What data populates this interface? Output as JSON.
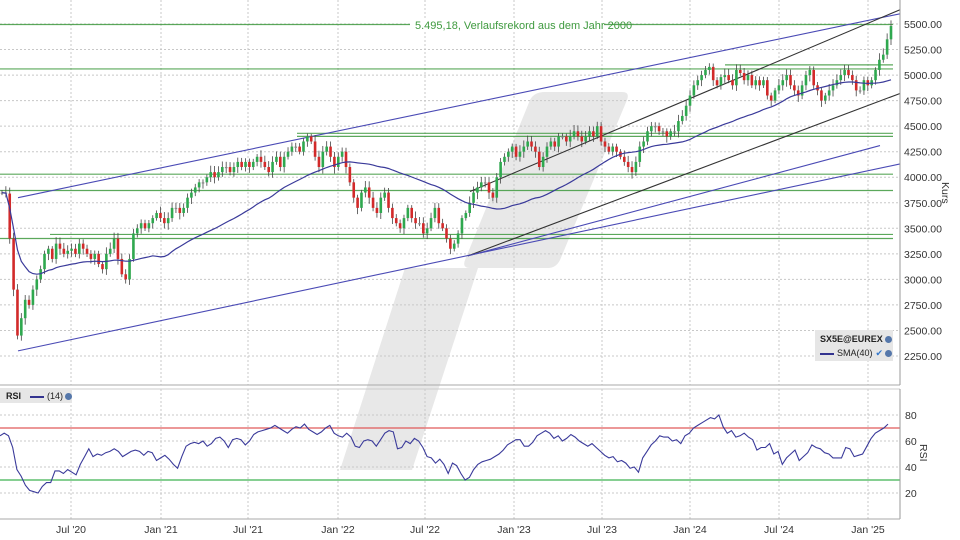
{
  "chart_data": [
    {
      "type": "candlestick",
      "title": "",
      "instrument": "SX5E@EUREX",
      "ylabel": "Kurs",
      "ylim": [
        2050,
        5650
      ],
      "yticks": [
        "5500.00",
        "5250.00",
        "5000.00",
        "4750.00",
        "4500.00",
        "4250.00",
        "4000.00",
        "3750.00",
        "3500.00",
        "3250.00",
        "3000.00",
        "2750.00",
        "2500.00",
        "2250.00"
      ],
      "xticks": [
        "Jul '20",
        "Jan '21",
        "Jul '21",
        "Jan '22",
        "Jul '22",
        "Jan '23",
        "Jul '23",
        "Jan '24",
        "Jul '24",
        "Jan '25"
      ],
      "grid": true,
      "annotation": "5.495,18, Verlaufsrekord aus dem Jahr 2000",
      "legend": [
        "SX5E@EUREX",
        "SMA(40)"
      ],
      "closes_weekly_approx": [
        3850,
        3840,
        3400,
        2900,
        2450,
        2620,
        2800,
        2750,
        2900,
        3000,
        3100,
        3250,
        3300,
        3200,
        3350,
        3300,
        3250,
        3280,
        3300,
        3250,
        3350,
        3300,
        3250,
        3200,
        3250,
        3150,
        3100,
        3250,
        3300,
        3400,
        3200,
        3050,
        3000,
        3200,
        3450,
        3500,
        3550,
        3500,
        3550,
        3600,
        3650,
        3600,
        3550,
        3600,
        3700,
        3700,
        3650,
        3700,
        3800,
        3850,
        3900,
        3950,
        3950,
        4000,
        4050,
        4000,
        4050,
        4100,
        4100,
        4050,
        4100,
        4150,
        4100,
        4150,
        4100,
        4150,
        4200,
        4150,
        4100,
        4050,
        4150,
        4200,
        4100,
        4200,
        4250,
        4300,
        4300,
        4250,
        4350,
        4400,
        4350,
        4200,
        4100,
        4250,
        4300,
        4200,
        4100,
        4200,
        4250,
        4100,
        3950,
        3800,
        3700,
        3850,
        3900,
        3800,
        3700,
        3650,
        3800,
        3850,
        3700,
        3600,
        3550,
        3500,
        3600,
        3700,
        3600,
        3550,
        3550,
        3450,
        3500,
        3600,
        3700,
        3550,
        3500,
        3400,
        3300,
        3350,
        3450,
        3600,
        3650,
        3750,
        3850,
        3900,
        3950,
        3950,
        3850,
        3800,
        4000,
        4150,
        4200,
        4250,
        4300,
        4200,
        4250,
        4300,
        4350,
        4300,
        4250,
        4100,
        4200,
        4300,
        4350,
        4300,
        4400,
        4400,
        4350,
        4400,
        4450,
        4400,
        4350,
        4400,
        4450,
        4400,
        4500,
        4350,
        4300,
        4250,
        4300,
        4250,
        4200,
        4150,
        4100,
        4050,
        4150,
        4300,
        4350,
        4450,
        4500,
        4500,
        4450,
        4450,
        4400,
        4450,
        4450,
        4550,
        4600,
        4700,
        4800,
        4900,
        4950,
        5000,
        5050,
        5080,
        4950,
        4900,
        4980,
        5000,
        4950,
        4900,
        5050,
        5020,
        4950,
        5000,
        4900,
        4950,
        4900,
        4950,
        4800,
        4750,
        4850,
        4900,
        4950,
        5000,
        4900,
        4850,
        4800,
        4900,
        5000,
        5050,
        4900,
        4850,
        4750,
        4800,
        4850,
        4900,
        4950,
        5000,
        5050,
        5000,
        4950,
        4850,
        4850,
        4950,
        4900,
        4950,
        5050,
        5150,
        5200,
        5350,
        5480
      ],
      "sma_period": 40,
      "horizontal_levels": [
        5495.18,
        5100,
        5060,
        4430,
        4400,
        4030,
        3870,
        3440,
        3400
      ],
      "trendlines": [
        {
          "name": "upper-long-blue",
          "from": [
            3800,
            18
          ],
          "to": [
            5600,
            900
          ]
        },
        {
          "name": "lower-long-blue",
          "from": [
            2300,
            18
          ],
          "to": [
            4130,
            900
          ]
        },
        {
          "name": "channel-upper-black",
          "from": [
            3860,
            470
          ],
          "to": [
            5640,
            900
          ]
        },
        {
          "name": "channel-lower-black",
          "from": [
            3230,
            468
          ],
          "to": [
            4820,
            900
          ]
        },
        {
          "name": "short-blue",
          "from": [
            3230,
            468
          ],
          "to": [
            4310,
            880
          ]
        }
      ]
    },
    {
      "type": "line",
      "title": "RSI",
      "series": [
        {
          "name": "RSI (14)"
        }
      ],
      "ylabel": "RSI",
      "ylim": [
        5,
        90
      ],
      "yticks": [
        "80",
        "60",
        "40",
        "20"
      ],
      "levels": {
        "overbought": 70,
        "oversold": 30
      },
      "values_approx": [
        64,
        66,
        64,
        55,
        38,
        33,
        26,
        22,
        21,
        20,
        25,
        28,
        28,
        37,
        37,
        35,
        38,
        36,
        34,
        42,
        48,
        54,
        48,
        50,
        49,
        51,
        52,
        54,
        52,
        48,
        50,
        52,
        53,
        52,
        49,
        52,
        51,
        45,
        47,
        49,
        46,
        42,
        39,
        48,
        56,
        58,
        59,
        58,
        60,
        56,
        58,
        62,
        63,
        60,
        55,
        61,
        62,
        61,
        57,
        60,
        65,
        67,
        68,
        69,
        70,
        72,
        70,
        68,
        66,
        69,
        71,
        70,
        73,
        69,
        67,
        65,
        67,
        70,
        72,
        66,
        64,
        63,
        66,
        63,
        56,
        55,
        60,
        61,
        60,
        56,
        61,
        66,
        68,
        67,
        54,
        55,
        60,
        58,
        62,
        60,
        55,
        48,
        47,
        43,
        46,
        42,
        35,
        43,
        41,
        35,
        30,
        32,
        38,
        42,
        44,
        45,
        46,
        48,
        50,
        53,
        57,
        59,
        61,
        61,
        56,
        56,
        59,
        64,
        66,
        68,
        66,
        62,
        64,
        60,
        62,
        65,
        63,
        60,
        58,
        56,
        58,
        55,
        52,
        49,
        47,
        48,
        44,
        45,
        43,
        39,
        40,
        36,
        47,
        52,
        57,
        60,
        64,
        63,
        63,
        60,
        61,
        58,
        64,
        66,
        70,
        72,
        74,
        76,
        78,
        77,
        80,
        71,
        66,
        68,
        63,
        64,
        66,
        63,
        61,
        53,
        55,
        55,
        58,
        50,
        52,
        42,
        47,
        50,
        53,
        45,
        48,
        51,
        57,
        55,
        54,
        51,
        50,
        47,
        47,
        47,
        55,
        54,
        48,
        49,
        50,
        56,
        62,
        66,
        68,
        70,
        73
      ]
    }
  ],
  "main_panel": {
    "annotation_text": "5.495,18, Verlaufsrekord aus dem Jahr 2000",
    "y_axis_label": "Kurs",
    "legend": {
      "instrument": "SX5E@EUREX",
      "indicator": "SMA(40)"
    },
    "colors": {
      "up": "#2fa84f",
      "down": "#d22a2a",
      "neutral": "#888888",
      "sma": "#3a3a9a",
      "level": "#3f9a3f",
      "trend_blue": "#4a4ab5",
      "trend_black": "#333333"
    }
  },
  "rsi_panel": {
    "label": "RSI",
    "param": "(14)",
    "y_axis_label": "RSI",
    "colors": {
      "line": "#3a3a9a",
      "overbought": "#e05a5a",
      "oversold": "#5fbf6f"
    }
  },
  "x_axis": {
    "ticks": [
      "Jul '20",
      "Jan '21",
      "Jul '21",
      "Jan '22",
      "Jul '22",
      "Jan '23",
      "Jul '23",
      "Jan '24",
      "Jul '24",
      "Jan '25"
    ]
  }
}
